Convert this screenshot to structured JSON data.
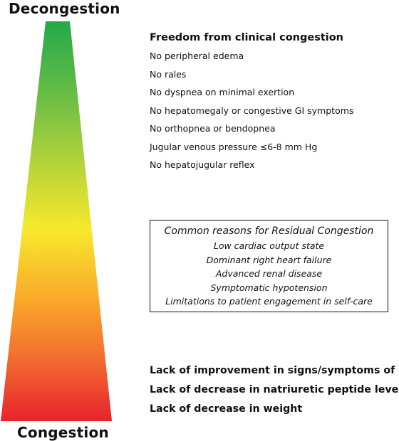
{
  "scale": {
    "top_label": "Decongestion",
    "bottom_label": "Congestion",
    "gradient_colors": [
      "#23aa48",
      "#62bb46",
      "#b3d23a",
      "#f7e92c",
      "#f9a72a",
      "#f26a2f",
      "#e8232d"
    ]
  },
  "freedom": {
    "title": "Freedom from clinical congestion",
    "items": [
      "No peripheral edema",
      "No rales",
      "No dyspnea on minimal exertion",
      "No hepatomegaly or congestive GI symptoms",
      "No orthopnea or bendopnea",
      "Jugular venous pressure ≤6-8 mm Hg",
      "No hepatojugular reflex"
    ]
  },
  "reasons": {
    "title": "Common reasons for Residual Congestion",
    "items": [
      "Low cardiac output state",
      "Dominant right heart failure",
      "Advanced renal disease",
      "Symptomatic hypotension",
      "Limitations to patient engagement in self-care"
    ]
  },
  "lack": {
    "items": [
      "Lack of improvement in signs/symptoms of HF",
      "Lack of decrease in natriuretic peptide levels",
      "Lack of decrease in weight"
    ]
  }
}
